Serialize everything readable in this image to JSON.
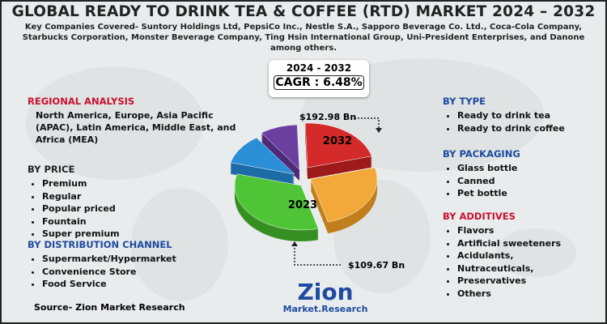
{
  "header": {
    "title": "GLOBAL READY TO DRINK TEA & COFFEE (RTD) MARKET 2024 – 2032",
    "subtitle": "Key Companies Covered- Suntory Holdings Ltd, PepsiCo Inc., Nestle S.A., Sapporo Beverage Co. Ltd., Coca-Cola Company, Starbucks Corporation, Monster Beverage Company, Ting Hsin International Group, Uni-President Enterprises, and Danone among others."
  },
  "cagr": {
    "period": "2024 - 2032",
    "label": "CAGR : 6.48%"
  },
  "pie": {
    "year_end": "2032",
    "year_start": "2023",
    "value_end": "$192.98 Bn",
    "value_start": "$109.67 Bn"
  },
  "regional": {
    "heading": "REGIONAL ANALYSIS",
    "text": "North America, Europe, Asia Pacific (APAC), Latin America, Middle East, and Africa (MEA)"
  },
  "price": {
    "heading": "BY PRICE",
    "items": [
      "Premium",
      "Regular",
      "Popular priced",
      "Fountain",
      "Super premium"
    ]
  },
  "distribution": {
    "heading": "BY DISTRIBUTION CHANNEL",
    "items": [
      "Supermarket/Hypermarket",
      "Convenience Store",
      "Food Service"
    ]
  },
  "type": {
    "heading": "BY TYPE",
    "items": [
      "Ready to drink tea",
      "Ready to drink coffee"
    ]
  },
  "packaging": {
    "heading": "BY PACKAGING",
    "items": [
      "Glass bottle",
      "Canned",
      "Pet bottle"
    ]
  },
  "additives": {
    "heading": "BY ADDITIVES",
    "items": [
      "Flavors",
      "Artificial sweeteners",
      "Acidulants,",
      "Nutraceuticals,",
      "Preservatives",
      "Others"
    ]
  },
  "source": "Source- Zion Market Research",
  "logo": {
    "name": "Zion",
    "tagline": "Market.Research"
  }
}
